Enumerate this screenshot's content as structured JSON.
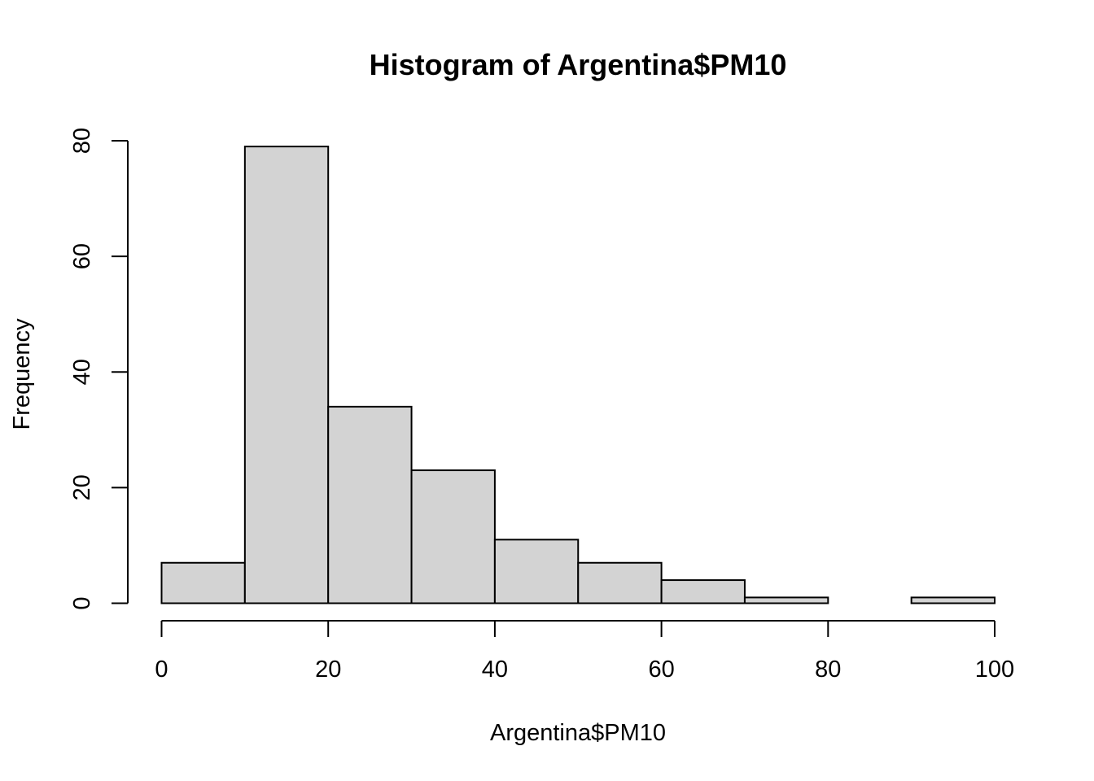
{
  "chart_data": {
    "type": "bar",
    "title": "Histogram of Argentina$PM10",
    "xlabel": "Argentina$PM10",
    "ylabel": "Frequency",
    "bins": [
      {
        "from": 0,
        "to": 10,
        "count": 7
      },
      {
        "from": 10,
        "to": 20,
        "count": 79
      },
      {
        "from": 20,
        "to": 30,
        "count": 34
      },
      {
        "from": 30,
        "to": 40,
        "count": 23
      },
      {
        "from": 40,
        "to": 50,
        "count": 11
      },
      {
        "from": 50,
        "to": 60,
        "count": 7
      },
      {
        "from": 60,
        "to": 70,
        "count": 4
      },
      {
        "from": 70,
        "to": 80,
        "count": 1
      },
      {
        "from": 80,
        "to": 90,
        "count": 0
      },
      {
        "from": 90,
        "to": 100,
        "count": 1
      }
    ],
    "xlim": [
      0,
      100
    ],
    "ylim": [
      0,
      80
    ],
    "x_ticks": [
      "0",
      "20",
      "40",
      "60",
      "80",
      "100"
    ],
    "y_ticks": [
      "0",
      "20",
      "40",
      "60",
      "80"
    ],
    "bar_color": "#d3d3d3",
    "border_color": "#000000",
    "grid": false,
    "legend": "none"
  }
}
